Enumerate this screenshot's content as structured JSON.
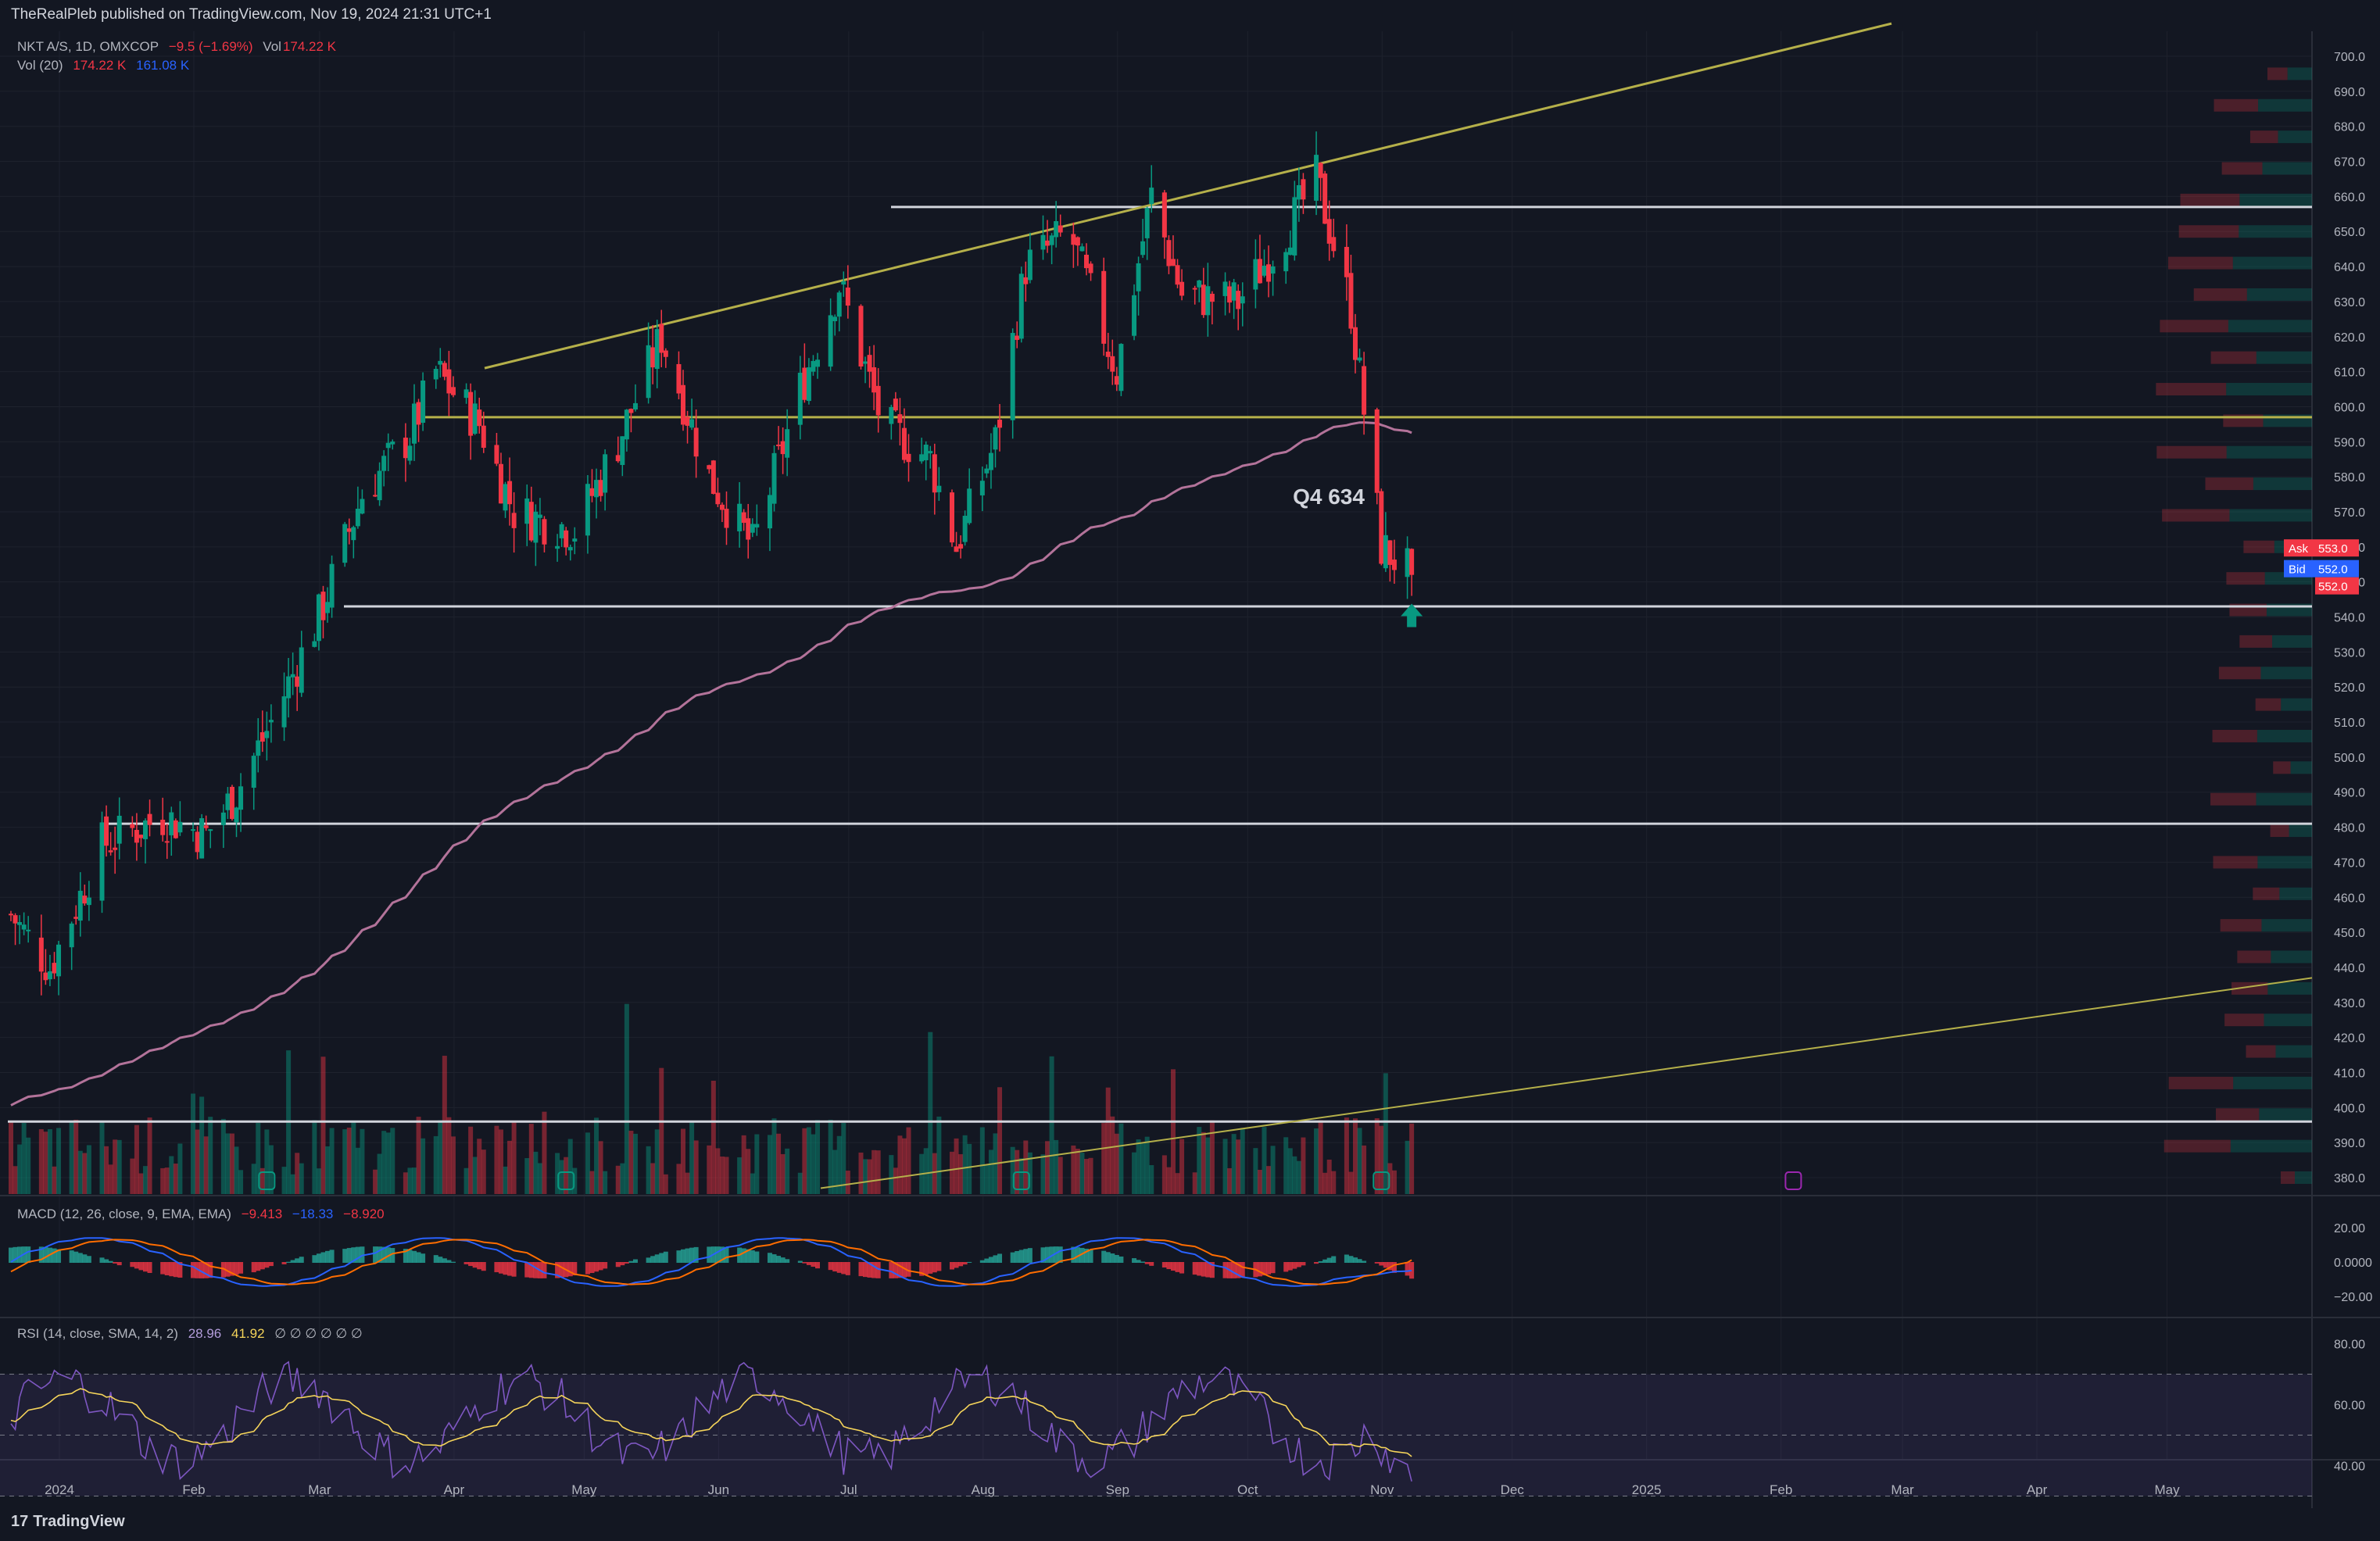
{
  "header": {
    "publisher": "TheRealPleb published on TradingView.com, Nov 19, 2024 21:31 UTC+1"
  },
  "legend": {
    "symbol": "NKT A/S, 1D, OMXCOP",
    "change": "−9.5 (−1.69%)",
    "vol_label": "Vol",
    "vol_value": "174.22 K",
    "vol20_label": "Vol (20)",
    "vol20_value1": "174.22 K",
    "vol20_value2": "161.08 K"
  },
  "macd_legend": {
    "label": "MACD (12, 26, close, 9, EMA, EMA)",
    "v1": "−9.413",
    "v2": "−18.33",
    "v3": "−8.920"
  },
  "rsi_legend": {
    "label": "RSI (14, close, SMA, 14, 2)",
    "v1": "28.96",
    "v2": "41.92",
    "v3": "∅ ∅ ∅ ∅ ∅ ∅"
  },
  "annotation": "Q4 634",
  "footer": {
    "logo": "17",
    "brand": "TradingView"
  },
  "price_panel": {
    "ask_label": "Ask",
    "ask_value": "553.0",
    "bid_label": "Bid",
    "bid_value": "552.0",
    "last_value": "552.0"
  },
  "colors": {
    "background": "#131722",
    "up": "#089981",
    "down": "#f23645",
    "trendline": "#b5b04a",
    "ma": "#b3739a",
    "level": "#d1d4dc"
  },
  "chart_data": [
    {
      "type": "candlestick",
      "symbol": "NKT A/S",
      "interval": "1D",
      "y_ticks": [
        "700.0",
        "690.0",
        "680.0",
        "670.0",
        "660.0",
        "650.0",
        "640.0",
        "630.0",
        "620.0",
        "610.0",
        "600.0",
        "590.0",
        "580.0",
        "570.0",
        "560.0",
        "550.0",
        "540.0",
        "530.0",
        "520.0",
        "510.0",
        "500.0",
        "490.0",
        "480.0",
        "470.0",
        "460.0",
        "450.0",
        "440.0",
        "430.0",
        "420.0",
        "410.0",
        "400.0",
        "390.0",
        "380.0"
      ],
      "ylim": [
        376,
        703
      ],
      "x_ticks": [
        "2024",
        "Feb",
        "Mar",
        "Apr",
        "May",
        "Jun",
        "Jul",
        "Aug",
        "Sep",
        "Oct",
        "Nov",
        "Dec",
        "2025",
        "Feb",
        "Mar",
        "Apr",
        "May"
      ],
      "horizontal_levels": [
        657,
        597,
        543,
        481,
        396
      ],
      "last_price": 552.0,
      "ask": 553.0,
      "bid": 552.0,
      "anchor_closes": [
        {
          "date": "2024-01-01",
          "close": 455
        },
        {
          "date": "2024-01-10",
          "close": 440
        },
        {
          "date": "2024-01-22",
          "close": 475
        },
        {
          "date": "2024-02-05",
          "close": 483
        },
        {
          "date": "2024-02-15",
          "close": 478
        },
        {
          "date": "2024-02-22",
          "close": 490
        },
        {
          "date": "2024-03-01",
          "close": 510
        },
        {
          "date": "2024-03-12",
          "close": 540
        },
        {
          "date": "2024-03-22",
          "close": 575
        },
        {
          "date": "2024-04-02",
          "close": 592
        },
        {
          "date": "2024-04-08",
          "close": 610
        },
        {
          "date": "2024-04-18",
          "close": 595
        },
        {
          "date": "2024-04-26",
          "close": 570
        },
        {
          "date": "2024-05-10",
          "close": 565
        },
        {
          "date": "2024-05-20",
          "close": 590
        },
        {
          "date": "2024-05-30",
          "close": 620
        },
        {
          "date": "2024-06-10",
          "close": 580
        },
        {
          "date": "2024-06-20",
          "close": 560
        },
        {
          "date": "2024-07-01",
          "close": 605
        },
        {
          "date": "2024-07-10",
          "close": 635
        },
        {
          "date": "2024-07-20",
          "close": 595
        },
        {
          "date": "2024-07-31",
          "close": 585
        },
        {
          "date": "2024-08-06",
          "close": 560
        },
        {
          "date": "2024-08-15",
          "close": 590
        },
        {
          "date": "2024-08-22",
          "close": 640
        },
        {
          "date": "2024-09-01",
          "close": 650
        },
        {
          "date": "2024-09-12",
          "close": 610
        },
        {
          "date": "2024-09-20",
          "close": 660
        },
        {
          "date": "2024-09-27",
          "close": 632
        },
        {
          "date": "2024-10-10",
          "close": 630
        },
        {
          "date": "2024-10-20",
          "close": 648
        },
        {
          "date": "2024-10-28",
          "close": 665
        },
        {
          "date": "2024-11-05",
          "close": 628
        },
        {
          "date": "2024-11-12",
          "close": 560
        },
        {
          "date": "2024-11-19",
          "close": 552
        }
      ]
    },
    {
      "type": "bar",
      "name": "Vol",
      "last": "174.22 K",
      "ma20": "161.08 K"
    },
    {
      "type": "histogram+line",
      "name": "MACD",
      "y_ticks": [
        "20.00",
        "0.0000",
        "−20.00"
      ],
      "macd": -9.413,
      "signal": -18.33,
      "histogram": -8.92
    },
    {
      "type": "line",
      "name": "RSI",
      "y_ticks": [
        "80.00",
        "60.00",
        "40.00"
      ],
      "rsi": 28.96,
      "rsi_ma": 41.92,
      "band": [
        30,
        70
      ]
    }
  ]
}
